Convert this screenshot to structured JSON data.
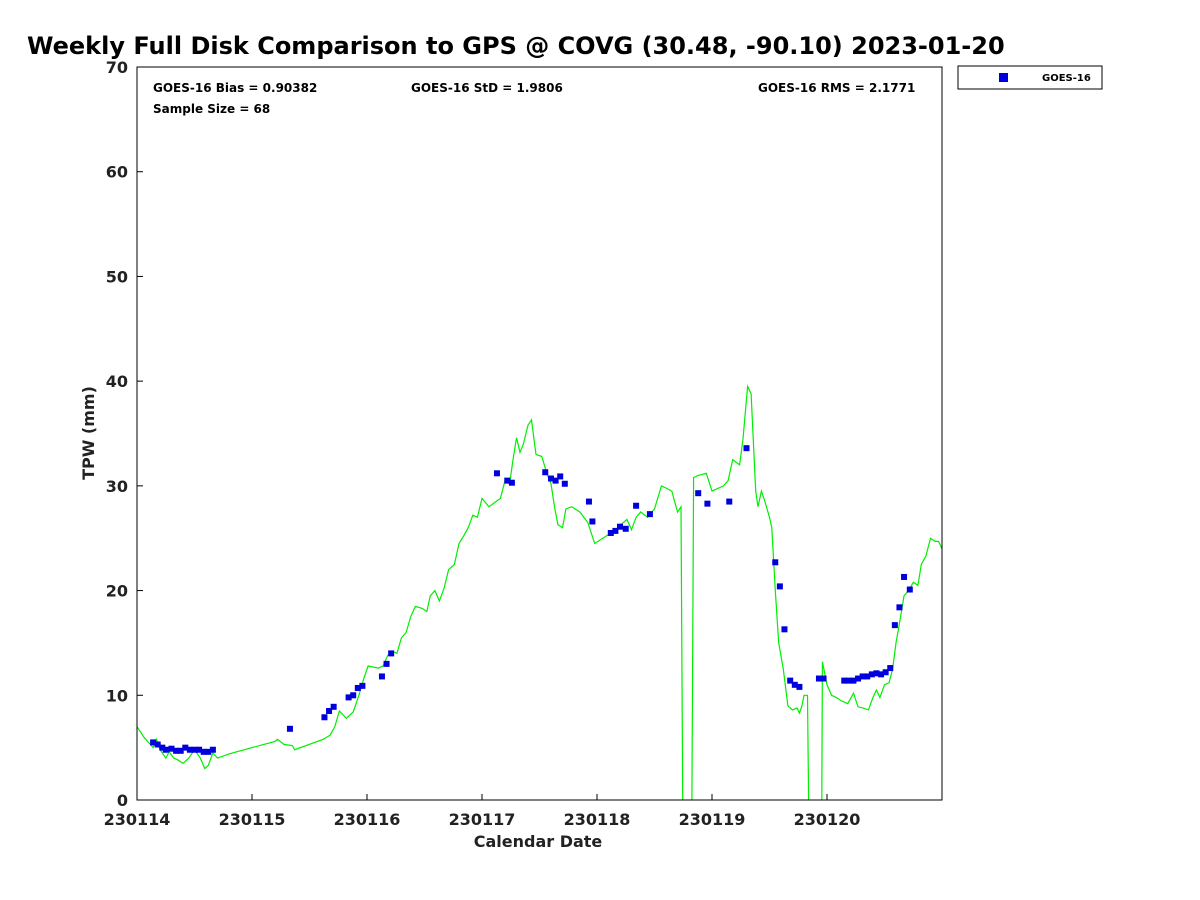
{
  "chart_data": {
    "type": "scatter",
    "title": "Weekly Full Disk Comparison to GPS @ COVG (30.48, -90.10) 2023-01-20",
    "xlabel": "Calendar Date",
    "ylabel": "TPW (mm)",
    "xlim": [
      0,
      7
    ],
    "ylim": [
      0,
      70
    ],
    "x_ticks": [
      0,
      1,
      2,
      3,
      4,
      5,
      6
    ],
    "x_tick_labels": [
      "230114",
      "230115",
      "230116",
      "230117",
      "230118",
      "230119",
      "230120"
    ],
    "y_ticks": [
      0,
      10,
      20,
      30,
      40,
      50,
      60,
      70
    ],
    "y_tick_labels": [
      "0",
      "10",
      "20",
      "30",
      "40",
      "50",
      "60",
      "70"
    ],
    "grid": false,
    "legend": {
      "placement": "outside-top-right",
      "entries": [
        "GOES-16"
      ]
    },
    "stats": {
      "bias": "GOES-16 Bias = 0.90382",
      "std": "GOES-16 StD = 1.9806",
      "rms": "GOES-16 RMS = 2.1771",
      "sample": "Sample Size = 68"
    },
    "series": [
      {
        "name": "GOES-16",
        "kind": "scatter",
        "color": "#0000dd",
        "marker": "square",
        "points": [
          [
            0.14,
            5.5
          ],
          [
            0.18,
            5.3
          ],
          [
            0.22,
            5.0
          ],
          [
            0.25,
            4.8
          ],
          [
            0.3,
            4.9
          ],
          [
            0.34,
            4.7
          ],
          [
            0.38,
            4.7
          ],
          [
            0.42,
            5.0
          ],
          [
            0.46,
            4.8
          ],
          [
            0.5,
            4.8
          ],
          [
            0.54,
            4.8
          ],
          [
            0.58,
            4.6
          ],
          [
            0.62,
            4.6
          ],
          [
            0.66,
            4.8
          ],
          [
            1.33,
            6.8
          ],
          [
            1.63,
            7.9
          ],
          [
            1.67,
            8.5
          ],
          [
            1.71,
            8.9
          ],
          [
            1.84,
            9.8
          ],
          [
            1.88,
            10.0
          ],
          [
            1.92,
            10.7
          ],
          [
            1.96,
            10.9
          ],
          [
            2.13,
            11.8
          ],
          [
            2.17,
            13.0
          ],
          [
            2.21,
            14.0
          ],
          [
            3.13,
            31.2
          ],
          [
            3.22,
            30.5
          ],
          [
            3.26,
            30.3
          ],
          [
            3.55,
            31.3
          ],
          [
            3.6,
            30.7
          ],
          [
            3.64,
            30.5
          ],
          [
            3.68,
            30.9
          ],
          [
            3.72,
            30.2
          ],
          [
            3.93,
            28.5
          ],
          [
            3.96,
            26.6
          ],
          [
            4.12,
            25.5
          ],
          [
            4.16,
            25.7
          ],
          [
            4.2,
            26.1
          ],
          [
            4.25,
            25.9
          ],
          [
            4.34,
            28.1
          ],
          [
            4.46,
            27.3
          ],
          [
            4.88,
            29.3
          ],
          [
            4.96,
            28.3
          ],
          [
            5.15,
            28.5
          ],
          [
            5.3,
            33.6
          ],
          [
            5.55,
            22.7
          ],
          [
            5.59,
            20.4
          ],
          [
            5.63,
            16.3
          ],
          [
            5.68,
            11.4
          ],
          [
            5.72,
            11.0
          ],
          [
            5.76,
            10.8
          ],
          [
            5.93,
            11.6
          ],
          [
            5.97,
            11.6
          ],
          [
            6.15,
            11.4
          ],
          [
            6.19,
            11.4
          ],
          [
            6.23,
            11.4
          ],
          [
            6.27,
            11.6
          ],
          [
            6.31,
            11.8
          ],
          [
            6.35,
            11.8
          ],
          [
            6.39,
            12.0
          ],
          [
            6.43,
            12.1
          ],
          [
            6.47,
            12.0
          ],
          [
            6.51,
            12.2
          ],
          [
            6.55,
            12.6
          ],
          [
            6.59,
            16.7
          ],
          [
            6.63,
            18.4
          ],
          [
            6.67,
            21.3
          ],
          [
            6.72,
            20.1
          ]
        ]
      },
      {
        "name": "GPS",
        "kind": "line",
        "color": "#00ee00",
        "points": [
          [
            0.0,
            7.0
          ],
          [
            0.06,
            6.0
          ],
          [
            0.1,
            5.5
          ],
          [
            0.14,
            5.0
          ],
          [
            0.17,
            5.8
          ],
          [
            0.2,
            4.8
          ],
          [
            0.25,
            4.0
          ],
          [
            0.28,
            4.6
          ],
          [
            0.32,
            4.0
          ],
          [
            0.36,
            3.8
          ],
          [
            0.4,
            3.5
          ],
          [
            0.45,
            4.0
          ],
          [
            0.5,
            4.8
          ],
          [
            0.55,
            4.0
          ],
          [
            0.59,
            3.0
          ],
          [
            0.62,
            3.3
          ],
          [
            0.66,
            4.5
          ],
          [
            0.7,
            4.0
          ],
          [
            0.8,
            4.4
          ],
          [
            1.0,
            5.0
          ],
          [
            1.2,
            5.6
          ],
          [
            1.22,
            5.8
          ],
          [
            1.28,
            5.3
          ],
          [
            1.35,
            5.2
          ],
          [
            1.37,
            4.8
          ],
          [
            1.62,
            5.8
          ],
          [
            1.68,
            6.2
          ],
          [
            1.72,
            7.0
          ],
          [
            1.76,
            8.5
          ],
          [
            1.82,
            7.8
          ],
          [
            1.88,
            8.4
          ],
          [
            1.93,
            10.0
          ],
          [
            1.97,
            11.5
          ],
          [
            2.01,
            12.8
          ],
          [
            2.1,
            12.6
          ],
          [
            2.14,
            12.8
          ],
          [
            2.18,
            13.8
          ],
          [
            2.22,
            14.2
          ],
          [
            2.26,
            14.0
          ],
          [
            2.3,
            15.5
          ],
          [
            2.34,
            16.0
          ],
          [
            2.38,
            17.5
          ],
          [
            2.42,
            18.5
          ],
          [
            2.48,
            18.3
          ],
          [
            2.52,
            18.0
          ],
          [
            2.55,
            19.5
          ],
          [
            2.59,
            20.0
          ],
          [
            2.63,
            19.0
          ],
          [
            2.67,
            20.2
          ],
          [
            2.71,
            22.0
          ],
          [
            2.76,
            22.5
          ],
          [
            2.8,
            24.5
          ],
          [
            2.84,
            25.2
          ],
          [
            2.88,
            26.0
          ],
          [
            2.92,
            27.2
          ],
          [
            2.96,
            27.0
          ],
          [
            3.0,
            28.8
          ],
          [
            3.06,
            28.0
          ],
          [
            3.12,
            28.5
          ],
          [
            3.16,
            28.8
          ],
          [
            3.2,
            30.5
          ],
          [
            3.24,
            30.2
          ],
          [
            3.27,
            32.5
          ],
          [
            3.3,
            34.6
          ],
          [
            3.33,
            33.2
          ],
          [
            3.36,
            34.0
          ],
          [
            3.4,
            35.8
          ],
          [
            3.43,
            36.3
          ],
          [
            3.47,
            33.0
          ],
          [
            3.52,
            32.8
          ],
          [
            3.57,
            31.0
          ],
          [
            3.6,
            30.2
          ],
          [
            3.63,
            28.0
          ],
          [
            3.66,
            26.3
          ],
          [
            3.7,
            26.0
          ],
          [
            3.73,
            27.8
          ],
          [
            3.78,
            28.0
          ],
          [
            3.85,
            27.5
          ],
          [
            3.92,
            26.5
          ],
          [
            3.98,
            24.5
          ],
          [
            4.05,
            25.0
          ],
          [
            4.12,
            25.5
          ],
          [
            4.18,
            26.0
          ],
          [
            4.26,
            26.8
          ],
          [
            4.3,
            25.8
          ],
          [
            4.34,
            27.0
          ],
          [
            4.38,
            27.5
          ],
          [
            4.44,
            27.0
          ],
          [
            4.5,
            27.8
          ],
          [
            4.56,
            30.0
          ],
          [
            4.6,
            29.8
          ],
          [
            4.65,
            29.5
          ],
          [
            4.7,
            27.5
          ],
          [
            4.73,
            28.0
          ],
          [
            4.745,
            0.0
          ],
          [
            4.755,
            -1.0
          ],
          [
            4.815,
            -1.0
          ],
          [
            4.825,
            0.0
          ],
          [
            4.84,
            30.8
          ],
          [
            4.88,
            31.0
          ],
          [
            4.95,
            31.2
          ],
          [
            5.0,
            29.5
          ],
          [
            5.1,
            30.0
          ],
          [
            5.14,
            30.5
          ],
          [
            5.18,
            32.5
          ],
          [
            5.24,
            32.0
          ],
          [
            5.27,
            34.5
          ],
          [
            5.31,
            39.5
          ],
          [
            5.34,
            38.8
          ],
          [
            5.38,
            29.5
          ],
          [
            5.4,
            28.0
          ],
          [
            5.43,
            29.5
          ],
          [
            5.46,
            28.5
          ],
          [
            5.5,
            27.0
          ],
          [
            5.52,
            26.0
          ],
          [
            5.55,
            20.0
          ],
          [
            5.58,
            15.0
          ],
          [
            5.62,
            12.5
          ],
          [
            5.66,
            9.0
          ],
          [
            5.7,
            8.6
          ],
          [
            5.74,
            8.8
          ],
          [
            5.76,
            8.3
          ],
          [
            5.78,
            8.9
          ],
          [
            5.8,
            10.0
          ],
          [
            5.83,
            10.0
          ],
          [
            5.84,
            0.0
          ],
          [
            5.85,
            -1.0
          ],
          [
            5.95,
            -1.0
          ],
          [
            5.955,
            0.0
          ],
          [
            5.96,
            13.2
          ],
          [
            6.0,
            11.0
          ],
          [
            6.04,
            10.0
          ],
          [
            6.08,
            9.8
          ],
          [
            6.12,
            9.5
          ],
          [
            6.18,
            9.2
          ],
          [
            6.23,
            10.2
          ],
          [
            6.27,
            8.9
          ],
          [
            6.31,
            8.8
          ],
          [
            6.36,
            8.6
          ],
          [
            6.4,
            9.8
          ],
          [
            6.43,
            10.5
          ],
          [
            6.46,
            9.8
          ],
          [
            6.5,
            11.0
          ],
          [
            6.54,
            11.2
          ],
          [
            6.57,
            12.5
          ],
          [
            6.6,
            15.0
          ],
          [
            6.64,
            17.5
          ],
          [
            6.67,
            19.5
          ],
          [
            6.71,
            20.0
          ],
          [
            6.75,
            20.8
          ],
          [
            6.79,
            20.5
          ],
          [
            6.82,
            22.5
          ],
          [
            6.86,
            23.3
          ],
          [
            6.9,
            25.0
          ],
          [
            6.94,
            24.7
          ],
          [
            6.97,
            24.7
          ],
          [
            7.0,
            24.0
          ]
        ]
      }
    ]
  }
}
